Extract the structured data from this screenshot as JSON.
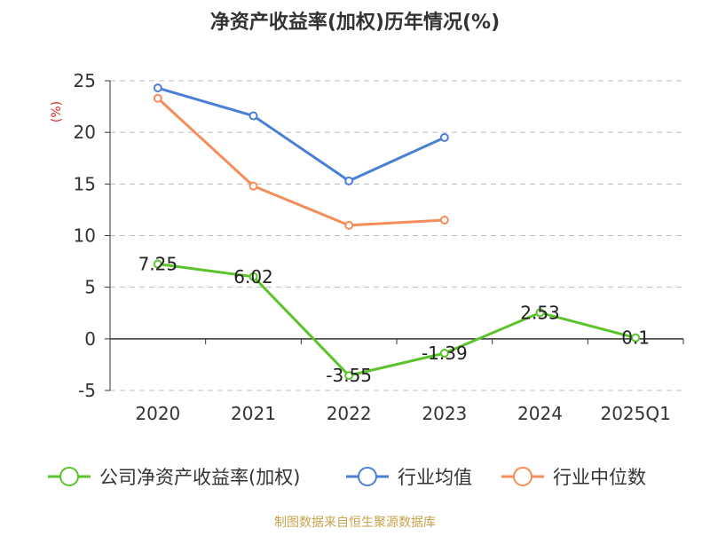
{
  "chart_data": {
    "type": "line",
    "title": "净资产收益率(加权)历年情况(%)",
    "ylabel": "(%)",
    "categories": [
      "2020",
      "2021",
      "2022",
      "2023",
      "2024",
      "2025Q1"
    ],
    "ylim": [
      -5,
      25
    ],
    "yticks": [
      25,
      20,
      15,
      10,
      5,
      0,
      -5
    ],
    "grid": true,
    "legend_position": "bottom",
    "series": [
      {
        "name": "公司净资产收益率(加权)",
        "color": "#5cc42a",
        "values": [
          7.25,
          6.02,
          -3.55,
          -1.39,
          2.53,
          0.1
        ],
        "labels": [
          "7.25",
          "6.02",
          "-3.55",
          "-1.39",
          "2.53",
          "0.1"
        ]
      },
      {
        "name": "行业均值",
        "color": "#4a7fd6",
        "values": [
          24.3,
          21.6,
          15.3,
          19.5,
          null,
          null
        ]
      },
      {
        "name": "行业中位数",
        "color": "#f58c5a",
        "values": [
          23.3,
          14.8,
          11.0,
          11.5,
          null,
          null
        ]
      }
    ]
  },
  "source": "制图数据来自恒生聚源数据库",
  "colors": {
    "title": "#333333",
    "ylabel": "#d42b2b",
    "grid": "#bbbbbb",
    "axis": "#333333",
    "source": "#c7a34d"
  }
}
